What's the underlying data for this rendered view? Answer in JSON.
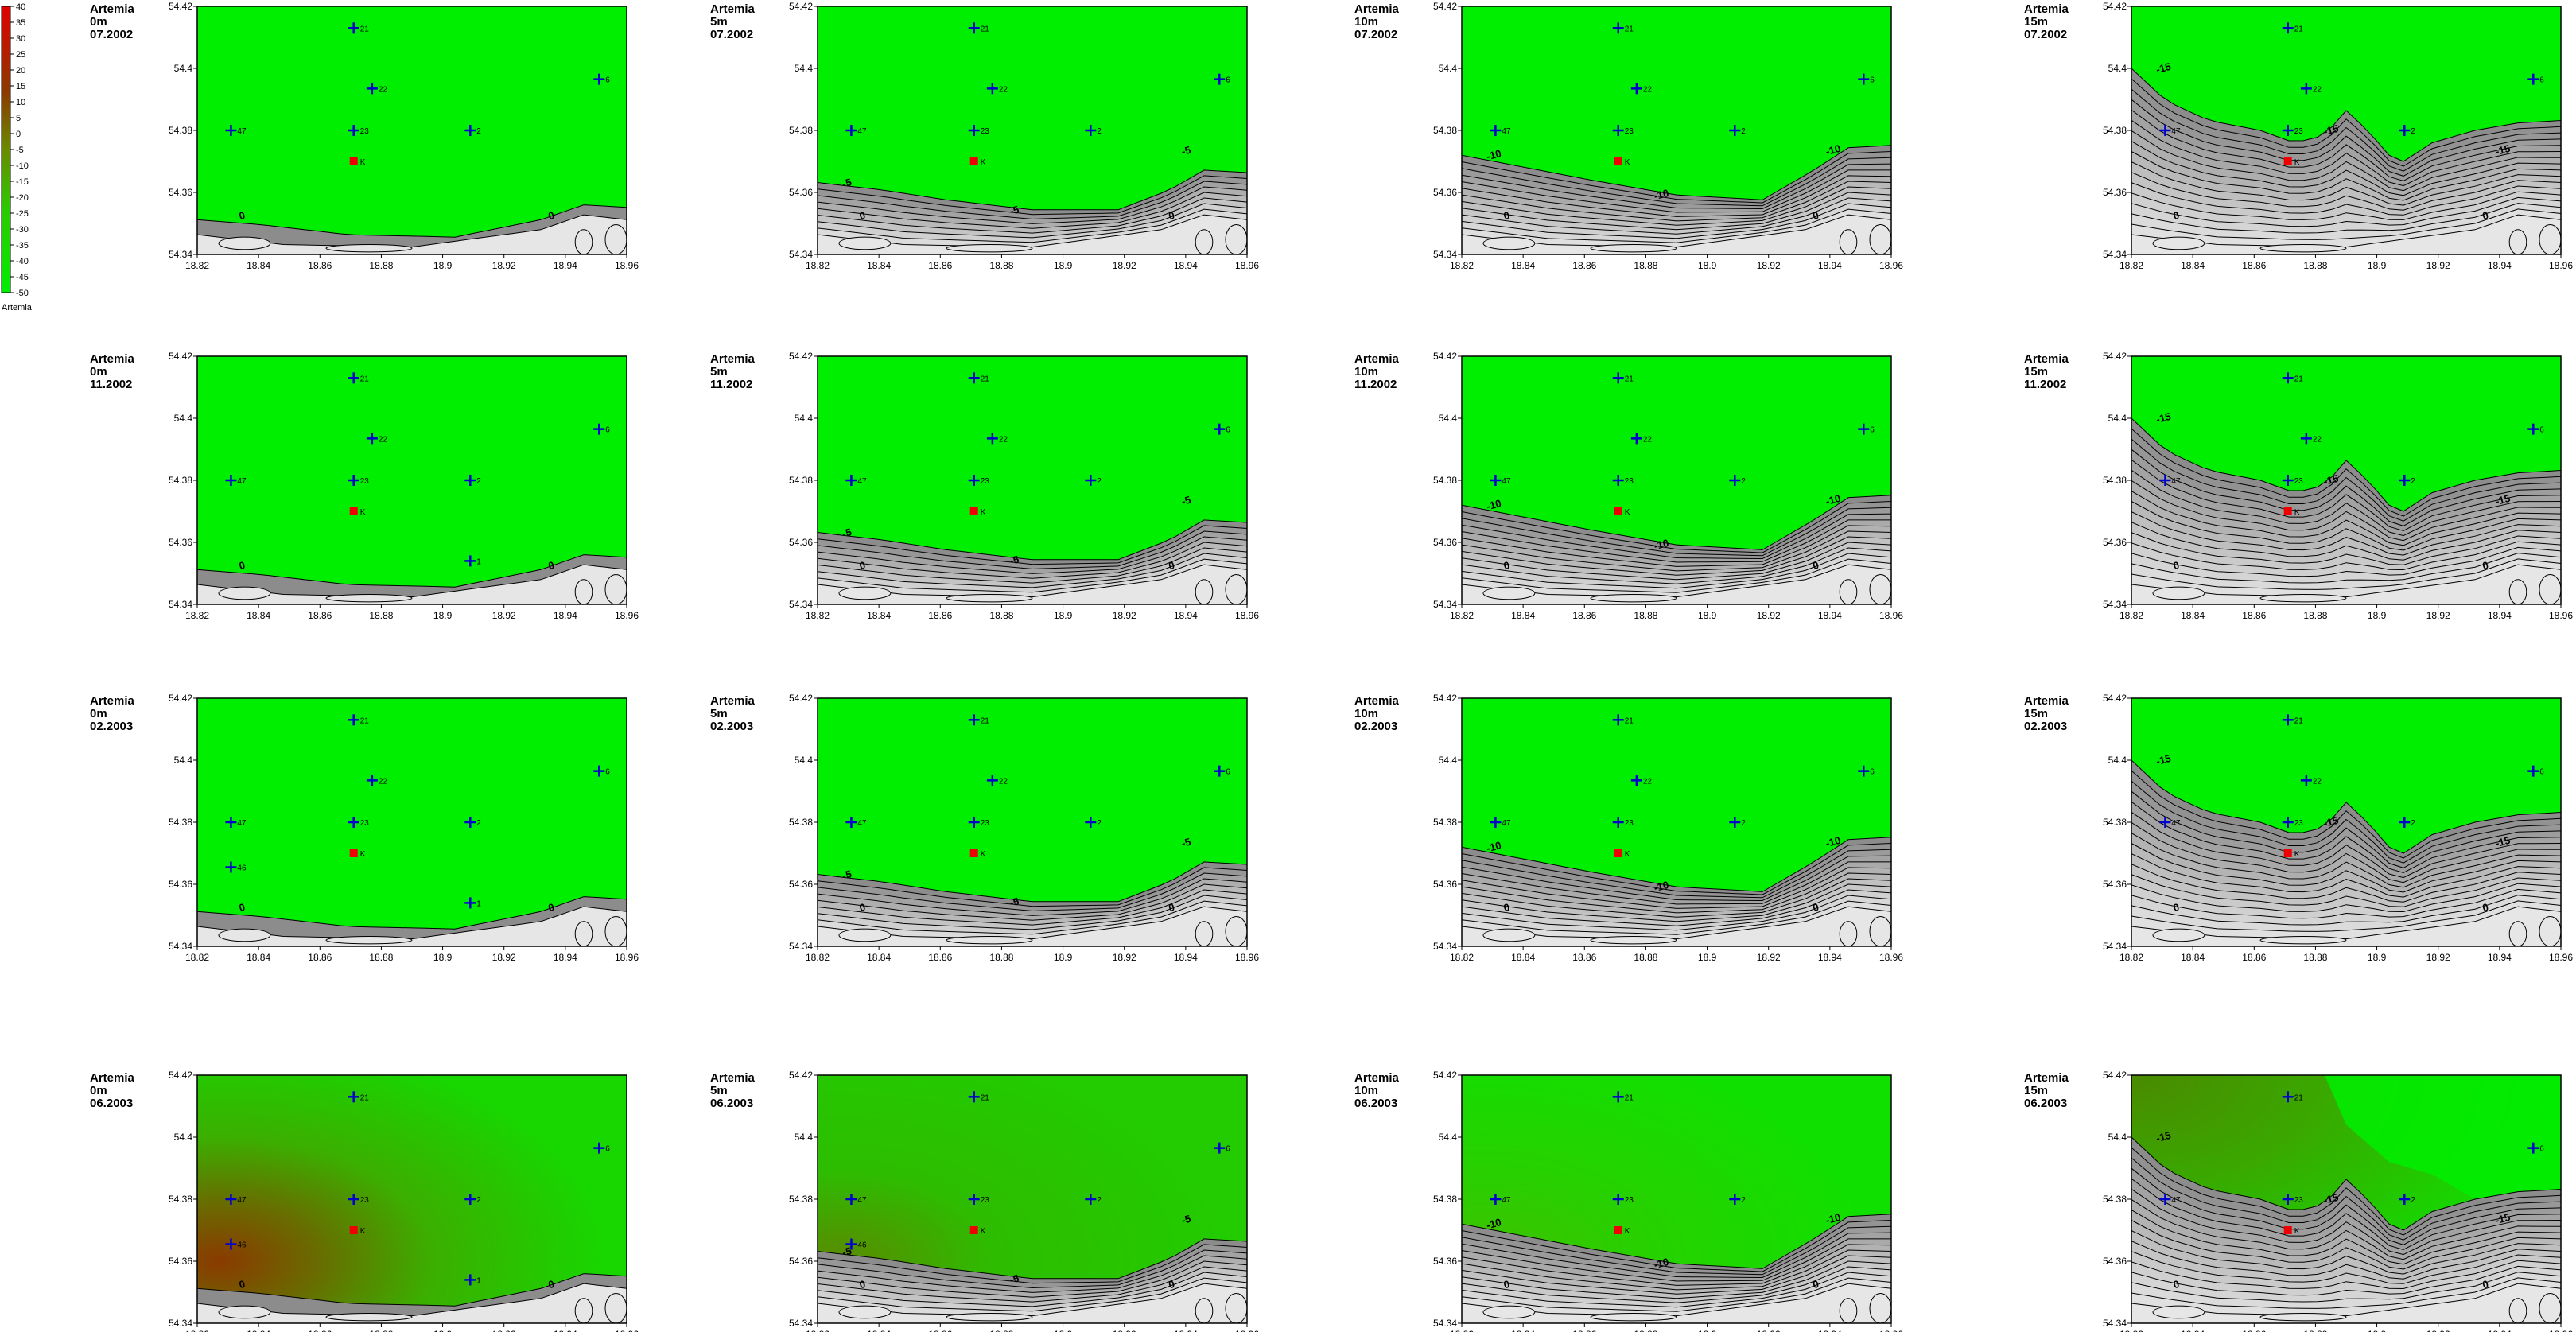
{
  "colorbar": {
    "ticks": [
      "40",
      "35",
      "30",
      "25",
      "20",
      "15",
      "10",
      "5",
      "0",
      "-5",
      "-10",
      "-15",
      "-20",
      "-25",
      "-30",
      "-35",
      "-40",
      "-45",
      "-50"
    ],
    "title": "Artemia",
    "colors": {
      "high": "#e00000",
      "mid": "#8a8a00",
      "low": "#00e600"
    }
  },
  "colors": {
    "field_green": "#00ee00",
    "olive": "#6a9a00",
    "brown": "#8a3a00",
    "contour_light": "#d8d8d8",
    "contour_dark": "#8f8f8f",
    "station_blue": "#0000cc",
    "station_red": "#ee0000"
  },
  "axes": {
    "x_ticks": [
      "18.82",
      "18.84",
      "18.86",
      "18.88",
      "18.9",
      "18.92",
      "18.94",
      "18.96"
    ],
    "y_ticks": [
      "54.42",
      "54.4",
      "54.38",
      "54.36",
      "54.34"
    ],
    "xlim": [
      18.82,
      18.96
    ],
    "ylim": [
      54.34,
      54.42
    ]
  },
  "stations": [
    {
      "name": "21",
      "lon": 18.871,
      "lat": 54.413,
      "type": "plus"
    },
    {
      "name": "22",
      "lon": 18.877,
      "lat": 54.3935,
      "type": "plus"
    },
    {
      "name": "6",
      "lon": 18.951,
      "lat": 54.3965,
      "type": "plus"
    },
    {
      "name": "47",
      "lon": 18.831,
      "lat": 54.38,
      "type": "plus"
    },
    {
      "name": "23",
      "lon": 18.871,
      "lat": 54.38,
      "type": "plus"
    },
    {
      "name": "2",
      "lon": 18.909,
      "lat": 54.38,
      "type": "plus"
    },
    {
      "name": "K",
      "lon": 18.871,
      "lat": 54.37,
      "type": "square"
    },
    {
      "name": "46",
      "lon": 18.831,
      "lat": 54.3655,
      "type": "plus"
    },
    {
      "name": "1",
      "lon": 18.909,
      "lat": 54.354,
      "type": "plus"
    }
  ],
  "chart_data": [
    {
      "type": "heatmap",
      "title": [
        "Artemia",
        "0m",
        "07.2002"
      ],
      "depth": "0m",
      "date": "07.2002",
      "stations": [
        "21",
        "22",
        "6",
        "47",
        "23",
        "2",
        "K"
      ],
      "contours": [
        "0"
      ],
      "field": "uniform",
      "field_value": -50
    },
    {
      "type": "heatmap",
      "title": [
        "Artemia",
        "5m",
        "07.2002"
      ],
      "depth": "5m",
      "date": "07.2002",
      "stations": [
        "21",
        "22",
        "6",
        "47",
        "23",
        "2",
        "K"
      ],
      "contours": [
        "-5",
        "0"
      ],
      "field": "uniform",
      "field_value": -50
    },
    {
      "type": "heatmap",
      "title": [
        "Artemia",
        "10m",
        "07.2002"
      ],
      "depth": "10m",
      "date": "07.2002",
      "stations": [
        "21",
        "22",
        "6",
        "47",
        "23",
        "2",
        "K"
      ],
      "contours": [
        "-10",
        "0"
      ],
      "field": "uniform",
      "field_value": -50
    },
    {
      "type": "heatmap",
      "title": [
        "Artemia",
        "15m",
        "07.2002"
      ],
      "depth": "15m",
      "date": "07.2002",
      "stations": [
        "21",
        "22",
        "6",
        "47",
        "23",
        "2",
        "K"
      ],
      "contours": [
        "-15",
        "0"
      ],
      "field": "uniform",
      "field_value": -50
    },
    {
      "type": "heatmap",
      "title": [
        "Artemia",
        "0m",
        "11.2002"
      ],
      "depth": "0m",
      "date": "11.2002",
      "stations": [
        "21",
        "22",
        "6",
        "47",
        "23",
        "2",
        "K",
        "1"
      ],
      "contours": [
        "0"
      ],
      "field": "uniform",
      "field_value": -50
    },
    {
      "type": "heatmap",
      "title": [
        "Artemia",
        "5m",
        "11.2002"
      ],
      "depth": "5m",
      "date": "11.2002",
      "stations": [
        "21",
        "22",
        "6",
        "47",
        "23",
        "2",
        "K"
      ],
      "contours": [
        "-5",
        "0"
      ],
      "field": "uniform",
      "field_value": -50
    },
    {
      "type": "heatmap",
      "title": [
        "Artemia",
        "10m",
        "11.2002"
      ],
      "depth": "10m",
      "date": "11.2002",
      "stations": [
        "21",
        "22",
        "6",
        "47",
        "23",
        "2",
        "K"
      ],
      "contours": [
        "-10",
        "0"
      ],
      "field": "uniform",
      "field_value": -50
    },
    {
      "type": "heatmap",
      "title": [
        "Artemia",
        "15m",
        "11.2002"
      ],
      "depth": "15m",
      "date": "11.2002",
      "stations": [
        "21",
        "22",
        "6",
        "47",
        "23",
        "2",
        "K"
      ],
      "contours": [
        "-15",
        "0"
      ],
      "field": "uniform",
      "field_value": -50
    },
    {
      "type": "heatmap",
      "title": [
        "Artemia",
        "0m",
        "02.2003"
      ],
      "depth": "0m",
      "date": "02.2003",
      "stations": [
        "21",
        "22",
        "6",
        "47",
        "23",
        "2",
        "K",
        "46",
        "1"
      ],
      "contours": [
        "0"
      ],
      "field": "uniform",
      "field_value": -50
    },
    {
      "type": "heatmap",
      "title": [
        "Artemia",
        "5m",
        "02.2003"
      ],
      "depth": "5m",
      "date": "02.2003",
      "stations": [
        "21",
        "22",
        "6",
        "47",
        "23",
        "2",
        "K"
      ],
      "contours": [
        "-5",
        "0"
      ],
      "field": "uniform",
      "field_value": -50
    },
    {
      "type": "heatmap",
      "title": [
        "Artemia",
        "10m",
        "02.2003"
      ],
      "depth": "10m",
      "date": "02.2003",
      "stations": [
        "21",
        "22",
        "6",
        "47",
        "23",
        "2",
        "K"
      ],
      "contours": [
        "-10",
        "0"
      ],
      "field": "uniform",
      "field_value": -50
    },
    {
      "type": "heatmap",
      "title": [
        "Artemia",
        "15m",
        "02.2003"
      ],
      "depth": "15m",
      "date": "02.2003",
      "stations": [
        "21",
        "22",
        "6",
        "47",
        "23",
        "2",
        "K"
      ],
      "contours": [
        "-15",
        "0"
      ],
      "field": "uniform",
      "field_value": -50
    },
    {
      "type": "heatmap",
      "title": [
        "Artemia",
        "0m",
        "06.2003"
      ],
      "depth": "0m",
      "date": "06.2003",
      "stations": [
        "21",
        "6",
        "47",
        "23",
        "2",
        "K",
        "46",
        "1"
      ],
      "contours": [
        "0"
      ],
      "field": "gradient_brown",
      "field_value": 10
    },
    {
      "type": "heatmap",
      "title": [
        "Artemia",
        "5m",
        "06.2003"
      ],
      "depth": "5m",
      "date": "06.2003",
      "stations": [
        "21",
        "6",
        "47",
        "23",
        "2",
        "K",
        "46"
      ],
      "contours": [
        "-5",
        "0"
      ],
      "field": "gradient_olive",
      "field_value": -15
    },
    {
      "type": "heatmap",
      "title": [
        "Artemia",
        "10m",
        "06.2003"
      ],
      "depth": "10m",
      "date": "06.2003",
      "stations": [
        "21",
        "47",
        "23",
        "2",
        "K"
      ],
      "contours": [
        "-10",
        "0"
      ],
      "field": "gradient_light",
      "field_value": -30
    },
    {
      "type": "heatmap",
      "title": [
        "Artemia",
        "15m",
        "06.2003"
      ],
      "depth": "15m",
      "date": "06.2003",
      "stations": [
        "21",
        "6",
        "47",
        "23",
        "2",
        "K"
      ],
      "contours": [
        "-15",
        "0"
      ],
      "field": "gradient_corner",
      "field_value": -10
    }
  ]
}
